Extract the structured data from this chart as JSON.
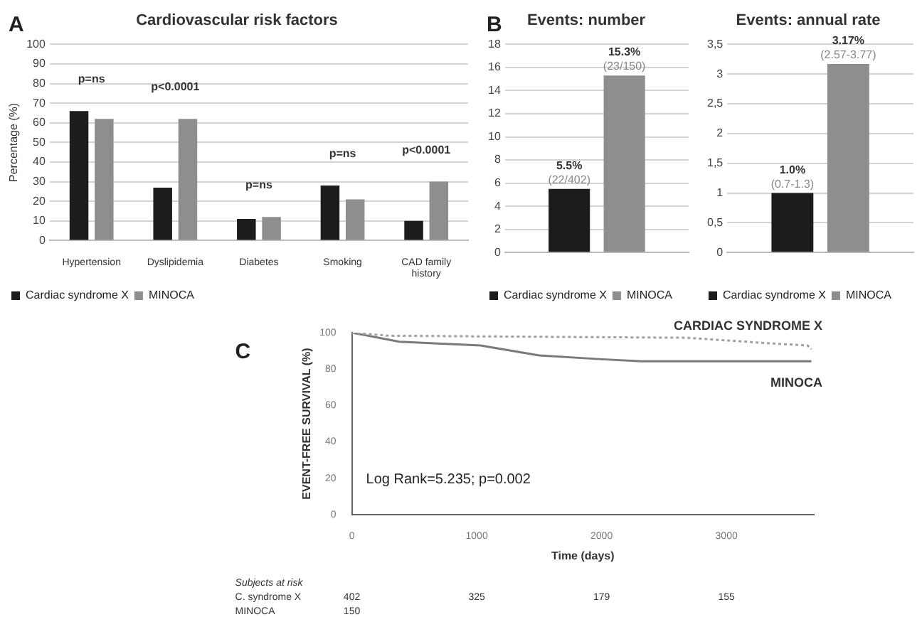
{
  "chart_data": [
    {
      "type": "bar",
      "title": "Cardiovascular risk factors",
      "ylabel": "Percentage (%)",
      "categories": [
        "Hypertension",
        "Dyslipidemia",
        "Diabetes",
        "Smoking",
        "CAD family history"
      ],
      "series": [
        {
          "name": "Cardiac syndrome X",
          "color": "#1c1c1c",
          "values": [
            66,
            27,
            11,
            28,
            10
          ]
        },
        {
          "name": "MINOCA",
          "color": "#8e8e8e",
          "values": [
            62,
            62,
            12,
            21,
            30
          ]
        }
      ],
      "ylim": [
        0,
        100
      ],
      "yticks": [
        0,
        10,
        20,
        30,
        40,
        50,
        60,
        70,
        80,
        90,
        100
      ],
      "grid": "y",
      "legend": "bottom",
      "annotations": [
        "A",
        {
          "text": "p=ns",
          "x": "Hypertension",
          "y": 66
        },
        {
          "text": "p<0.0001",
          "x": "Dyslipidemia",
          "y": 62
        },
        {
          "text": "p=ns",
          "x": "Diabetes",
          "y": 12
        },
        {
          "text": "p=ns",
          "x": "Smoking",
          "y": 28
        },
        {
          "text": "p<0.0001",
          "x": "CAD family history",
          "y": 30
        }
      ]
    },
    {
      "type": "bar",
      "title": "Events: number",
      "categories": [
        null
      ],
      "series": [
        {
          "name": "Cardiac syndrome X",
          "color": "#1c1c1c",
          "values": [
            5.5
          ],
          "value_labels": [
            "5.5%\n(22/402)"
          ]
        },
        {
          "name": "MINOCA",
          "color": "#8e8e8e",
          "values": [
            15.3
          ],
          "value_labels": [
            "15.3%\n(23/150)"
          ]
        }
      ],
      "ylim": [
        0,
        18
      ],
      "yticks": [
        0,
        2,
        4,
        6,
        8,
        10,
        12,
        14,
        16,
        18
      ],
      "grid": "y",
      "legend": "bottom",
      "annotations": [
        "B"
      ]
    },
    {
      "type": "bar",
      "title": "Events: annual rate",
      "categories": [
        null
      ],
      "series": [
        {
          "name": "Cardiac syndrome X",
          "color": "#1c1c1c",
          "values": [
            1.0
          ],
          "value_labels": [
            "1.0%\n(0.7-1.3)"
          ]
        },
        {
          "name": "MINOCA",
          "color": "#8e8e8e",
          "values": [
            3.17
          ],
          "value_labels": [
            "3.17%\n(2.57-3.77)"
          ]
        }
      ],
      "ylim": [
        0,
        3.5
      ],
      "yticks": [
        0,
        {
          "value": 0.5,
          "label": "0,5"
        },
        1,
        {
          "value": 1.5,
          "label": "1,5"
        },
        2,
        {
          "value": 2.5,
          "label": "2,5"
        },
        3,
        {
          "value": 3.5,
          "label": "3,5"
        }
      ],
      "grid": "y",
      "legend": "bottom"
    },
    {
      "type": "line",
      "xlabel": "Time (days)",
      "ylabel": "EVENT-FREE SURVIVAL (%)",
      "marker": "none",
      "grid": false,
      "legend": false,
      "series": [
        {
          "name": "CARDIAC SYNDROME X",
          "color": "#a0a0a0",
          "line_style": "dotted",
          "x": [
            0,
            300,
            2680,
            3380,
            3650,
            3680
          ],
          "values": [
            100,
            98.3,
            97.2,
            94,
            93,
            90.8
          ]
        },
        {
          "name": "MINOCA",
          "color": "#7a7a7a",
          "line_style": "solid",
          "x": [
            0,
            380,
            1030,
            1500,
            2000,
            2320,
            3680
          ],
          "values": [
            100,
            95,
            93,
            87.5,
            85.4,
            84.3,
            84.3
          ]
        }
      ],
      "xlim": [
        0,
        3700
      ],
      "xticks": [
        0,
        1000,
        2000,
        3000
      ],
      "ylim": [
        0,
        100
      ],
      "yticks": [
        0,
        20,
        40,
        60,
        80,
        100
      ],
      "annotations": [
        "C",
        "Log Rank=5.235; p=0.002",
        "Subjects at risk",
        "C. syndrome X",
        "402",
        "325",
        "179",
        "155",
        "MINOCA",
        "150"
      ]
    }
  ]
}
